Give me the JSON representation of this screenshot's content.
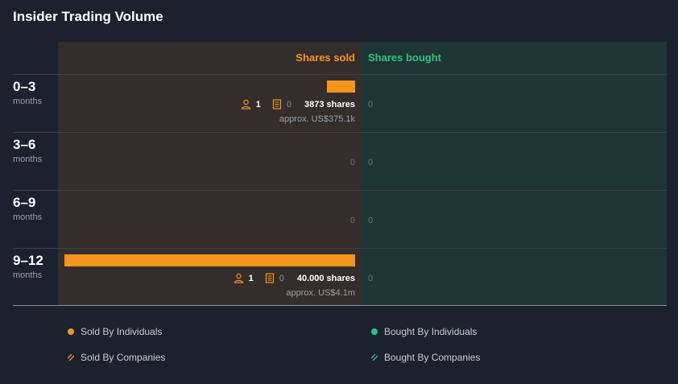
{
  "title": "Insider Trading Volume",
  "colors": {
    "sold": "#f7941d",
    "bought": "#2ec27e"
  },
  "icons": {
    "individuals": "person-icon",
    "companies": "building-icon"
  },
  "chart_data": {
    "type": "bar",
    "title": "Insider Trading Volume",
    "columns": [
      "Shares sold",
      "Shares bought"
    ],
    "rows": [
      {
        "range": "0–3",
        "unit": "months",
        "sold": {
          "shares": 3873,
          "individuals": "1",
          "companies": "0",
          "shares_label": "3873 shares",
          "approx": "approx. US$375.1k"
        },
        "bought": {
          "value": "0"
        }
      },
      {
        "range": "3–6",
        "unit": "months",
        "sold": {
          "shares": 0,
          "value": "0"
        },
        "bought": {
          "value": "0"
        }
      },
      {
        "range": "6–9",
        "unit": "months",
        "sold": {
          "shares": 0,
          "value": "0"
        },
        "bought": {
          "value": "0"
        }
      },
      {
        "range": "9–12",
        "unit": "months",
        "sold": {
          "shares": 40000,
          "individuals": "1",
          "companies": "0",
          "shares_label": "40.000 shares",
          "approx": "approx. US$4.1m"
        },
        "bought": {
          "value": "0"
        }
      }
    ],
    "legend": [
      {
        "label": "Sold By Individuals",
        "marker": "dot",
        "color": "#f7941d"
      },
      {
        "label": "Bought By Individuals",
        "marker": "dot",
        "color": "#2ec27e"
      },
      {
        "label": "Sold By Companies",
        "marker": "hatch",
        "color": "#f7941d"
      },
      {
        "label": "Bought By Companies",
        "marker": "hatch",
        "color": "#2ec27e"
      }
    ]
  }
}
